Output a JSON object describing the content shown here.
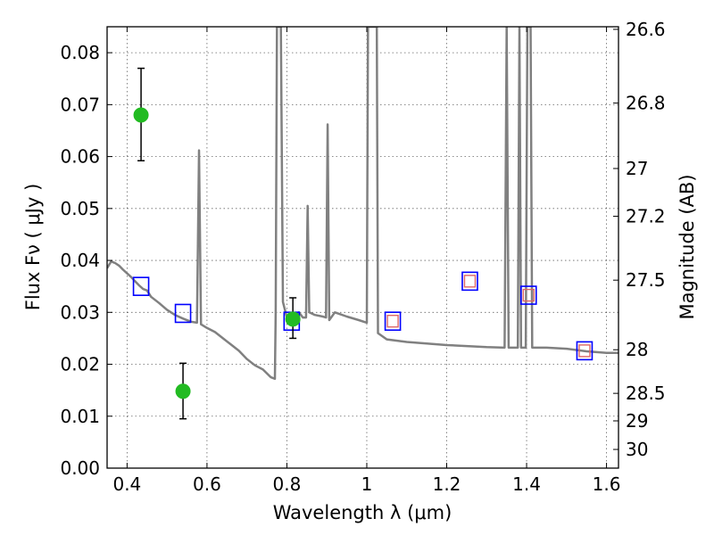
{
  "chart_data": {
    "type": "scatter",
    "xlabel": "Wavelength  λ (μm)",
    "ylabel": "Flux  Fν  ( μJy )",
    "y2label": "Magnitude (AB)",
    "xlim": [
      0.35,
      1.63
    ],
    "ylim": [
      0.0,
      0.085
    ],
    "grid": true,
    "x_ticks": [
      0.4,
      0.6,
      0.8,
      1.0,
      1.2,
      1.4,
      1.6
    ],
    "x_tick_labels": [
      "0.4",
      "0.6",
      "0.8",
      "1",
      "1.2",
      "1.4",
      "1.6"
    ],
    "y_ticks": [
      0.0,
      0.01,
      0.02,
      0.03,
      0.04,
      0.05,
      0.06,
      0.07,
      0.08
    ],
    "y_tick_labels": [
      "0.00",
      "0.01",
      "0.02",
      "0.03",
      "0.04",
      "0.05",
      "0.06",
      "0.07",
      "0.08"
    ],
    "y2_ticks": [
      {
        "label": "26.6",
        "flux": 0.0845
      },
      {
        "label": "26.8",
        "flux": 0.0703
      },
      {
        "label": "27",
        "flux": 0.0577
      },
      {
        "label": "27.2",
        "flux": 0.0485
      },
      {
        "label": "27.5",
        "flux": 0.0362
      },
      {
        "label": "28",
        "flux": 0.0228
      },
      {
        "label": "28.5",
        "flux": 0.0144
      },
      {
        "label": "29",
        "flux": 0.0091
      },
      {
        "label": "30",
        "flux": 0.0036
      }
    ],
    "series": [
      {
        "kind": "model_spectrum",
        "color": "#808080",
        "points": [
          [
            0.35,
            0.0385
          ],
          [
            0.36,
            0.0398
          ],
          [
            0.37,
            0.0395
          ],
          [
            0.38,
            0.039
          ],
          [
            0.39,
            0.0382
          ],
          [
            0.4,
            0.0375
          ],
          [
            0.41,
            0.0368
          ],
          [
            0.42,
            0.036
          ],
          [
            0.43,
            0.0352
          ],
          [
            0.44,
            0.0345
          ],
          [
            0.45,
            0.0342
          ],
          [
            0.46,
            0.033
          ],
          [
            0.48,
            0.0318
          ],
          [
            0.5,
            0.0305
          ],
          [
            0.52,
            0.0295
          ],
          [
            0.54,
            0.0288
          ],
          [
            0.56,
            0.0282
          ],
          [
            0.575,
            0.028
          ],
          [
            0.58,
            0.0612
          ],
          [
            0.585,
            0.0277
          ],
          [
            0.6,
            0.027
          ],
          [
            0.62,
            0.0262
          ],
          [
            0.64,
            0.025
          ],
          [
            0.66,
            0.0238
          ],
          [
            0.68,
            0.0226
          ],
          [
            0.7,
            0.021
          ],
          [
            0.72,
            0.0198
          ],
          [
            0.74,
            0.019
          ],
          [
            0.76,
            0.0175
          ],
          [
            0.77,
            0.0172
          ],
          [
            0.772,
            0.03
          ],
          [
            0.775,
            0.085
          ],
          [
            0.785,
            0.085
          ],
          [
            0.79,
            0.032
          ],
          [
            0.8,
            0.029
          ],
          [
            0.81,
            0.0295
          ],
          [
            0.83,
            0.03
          ],
          [
            0.84,
            0.029
          ],
          [
            0.848,
            0.029
          ],
          [
            0.852,
            0.0505
          ],
          [
            0.856,
            0.03
          ],
          [
            0.87,
            0.0295
          ],
          [
            0.89,
            0.0292
          ],
          [
            0.898,
            0.029
          ],
          [
            0.902,
            0.0662
          ],
          [
            0.906,
            0.0285
          ],
          [
            0.92,
            0.03
          ],
          [
            0.95,
            0.0292
          ],
          [
            0.98,
            0.0285
          ],
          [
            1.0,
            0.028
          ],
          [
            1.003,
            0.085
          ],
          [
            1.025,
            0.085
          ],
          [
            1.028,
            0.026
          ],
          [
            1.05,
            0.0248
          ],
          [
            1.1,
            0.0243
          ],
          [
            1.15,
            0.024
          ],
          [
            1.2,
            0.0237
          ],
          [
            1.25,
            0.0235
          ],
          [
            1.3,
            0.0233
          ],
          [
            1.345,
            0.0232
          ],
          [
            1.35,
            0.085
          ],
          [
            1.355,
            0.0232
          ],
          [
            1.378,
            0.0232
          ],
          [
            1.382,
            0.085
          ],
          [
            1.386,
            0.0232
          ],
          [
            1.398,
            0.0232
          ],
          [
            1.402,
            0.085
          ],
          [
            1.41,
            0.085
          ],
          [
            1.414,
            0.0232
          ],
          [
            1.45,
            0.0232
          ],
          [
            1.5,
            0.023
          ],
          [
            1.55,
            0.0225
          ],
          [
            1.6,
            0.0222
          ],
          [
            1.63,
            0.0222
          ]
        ]
      },
      {
        "kind": "model_photometry",
        "marker": "square",
        "color": "#0000ff",
        "points": [
          [
            0.435,
            0.035
          ],
          [
            0.54,
            0.0298
          ],
          [
            0.812,
            0.0283
          ],
          [
            1.065,
            0.0283
          ],
          [
            1.258,
            0.036
          ],
          [
            1.405,
            0.0333
          ],
          [
            1.545,
            0.0226
          ]
        ]
      },
      {
        "kind": "observed_photometry",
        "marker": "square",
        "color": "#dd6666",
        "points": [
          [
            1.065,
            0.0283
          ],
          [
            1.258,
            0.036
          ],
          [
            1.405,
            0.0333
          ],
          [
            1.545,
            0.0226
          ]
        ]
      },
      {
        "kind": "detections",
        "marker": "circle",
        "color": "#22bb22",
        "points": [
          {
            "x": 0.435,
            "y": 0.068,
            "ylo": 0.0592,
            "yhi": 0.077
          },
          {
            "x": 0.54,
            "y": 0.0148,
            "ylo": 0.0095,
            "yhi": 0.0202
          },
          {
            "x": 0.815,
            "y": 0.0287,
            "ylo": 0.025,
            "yhi": 0.0328
          }
        ]
      }
    ]
  }
}
